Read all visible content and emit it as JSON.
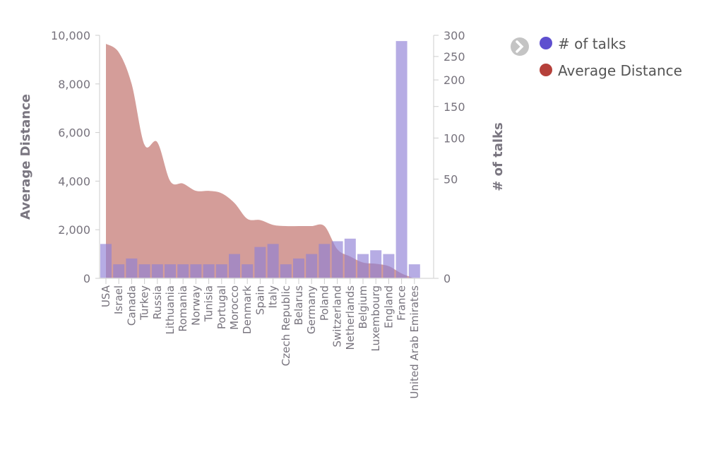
{
  "chart_data": {
    "type": "bar+area",
    "categories": [
      "USA",
      "Israel",
      "Canada",
      "Turkey",
      "Russia",
      "Lithuania",
      "Romania",
      "Norway",
      "Tunisia",
      "Portugal",
      "Morocco",
      "Denmark",
      "Spain",
      "Italy",
      "Czech Republic",
      "Belarus",
      "Germany",
      "Poland",
      "Switzerland",
      "Netherlands",
      "Belgium",
      "Luxembourg",
      "England",
      "France",
      "United Arab Emirates"
    ],
    "series": [
      {
        "name": "# of talks",
        "type": "bar",
        "axis": "right",
        "color": "#6f5fcf",
        "values": [
          6,
          1,
          2,
          1,
          1,
          1,
          1,
          1,
          1,
          1,
          3,
          1,
          5,
          6,
          1,
          2,
          3,
          6,
          7,
          8,
          3,
          4,
          3,
          286,
          1
        ]
      },
      {
        "name": "Average Distance",
        "type": "area",
        "axis": "left",
        "color": "#b5403a",
        "values": [
          9650,
          9300,
          8000,
          5500,
          5600,
          4000,
          3900,
          3600,
          3600,
          3500,
          3100,
          2450,
          2400,
          2200,
          2150,
          2150,
          2150,
          2150,
          1200,
          900,
          650,
          600,
          500,
          200,
          0
        ]
      }
    ],
    "ylabel": "Average Distance",
    "y2label": "# of talks",
    "ylim": [
      0,
      10000
    ],
    "y2lim": [
      0,
      300
    ],
    "y2scale": "sqrt",
    "yticks": [
      "0",
      "2,000",
      "4,000",
      "6,000",
      "8,000",
      "10,000"
    ],
    "y2ticks": [
      "0",
      "50",
      "100",
      "150",
      "200",
      "250",
      "300"
    ],
    "legend": "top-right",
    "grid": false
  },
  "legend": {
    "items": [
      "# of talks",
      "Average Distance"
    ]
  }
}
